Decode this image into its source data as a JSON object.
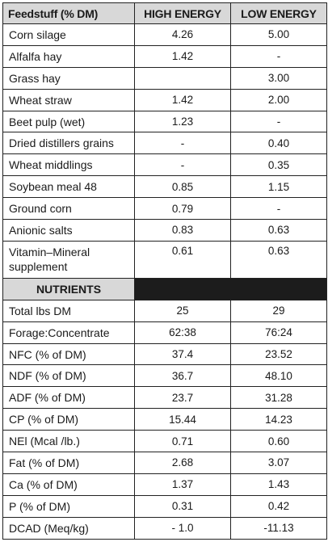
{
  "header": {
    "col1": "Feedstuff (% DM)",
    "col2": "HIGH ENERGY",
    "col3": "LOW ENERGY"
  },
  "feedstuffs": [
    {
      "name": "Corn silage",
      "high": "4.26",
      "low": "5.00"
    },
    {
      "name": "Alfalfa hay",
      "high": "1.42",
      "low": "-"
    },
    {
      "name": "Grass hay",
      "high": "",
      "low": "3.00"
    },
    {
      "name": "Wheat straw",
      "high": "1.42",
      "low": "2.00"
    },
    {
      "name": "Beet pulp (wet)",
      "high": "1.23",
      "low": "-"
    },
    {
      "name": "Dried distillers grains",
      "high": "-",
      "low": "0.40"
    },
    {
      "name": "Wheat middlings",
      "high": "-",
      "low": "0.35"
    },
    {
      "name": "Soybean meal 48",
      "high": "0.85",
      "low": "1.15"
    },
    {
      "name": "Ground corn",
      "high": "0.79",
      "low": "-"
    },
    {
      "name": "Anionic salts",
      "high": "0.83",
      "low": "0.63"
    },
    {
      "name": "Vitamin–Mineral supplement",
      "high": "0.61",
      "low": "0.63"
    }
  ],
  "nutrients_header": "NUTRIENTS",
  "nutrients": [
    {
      "name": "Total lbs DM",
      "high": "25",
      "low": "29"
    },
    {
      "name": "Forage:Concentrate",
      "high": "62:38",
      "low": "76:24"
    },
    {
      "name": "NFC (% of DM)",
      "high": "37.4",
      "low": "23.52"
    },
    {
      "name": "NDF (% of DM)",
      "high": "36.7",
      "low": "48.10"
    },
    {
      "name": "ADF (% of DM)",
      "high": "23.7",
      "low": "31.28"
    },
    {
      "name": "CP (% of DM)",
      "high": "15.44",
      "low": "14.23"
    },
    {
      "name": "NEl (Mcal /lb.)",
      "high": "0.71",
      "low": "0.60"
    },
    {
      "name": "Fat (% of DM)",
      "high": "2.68",
      "low": "3.07"
    },
    {
      "name": "Ca (% of DM)",
      "high": "1.37",
      "low": "1.43"
    },
    {
      "name": "P (% of DM)",
      "high": "0.31",
      "low": "0.42"
    },
    {
      "name": "DCAD (Meq/kg)",
      "high": "- 1.0",
      "low": "-11.13"
    }
  ],
  "colors": {
    "header_bg": "#d8d8d8",
    "dark_cell": "#1c1c1c",
    "border": "#222222"
  }
}
